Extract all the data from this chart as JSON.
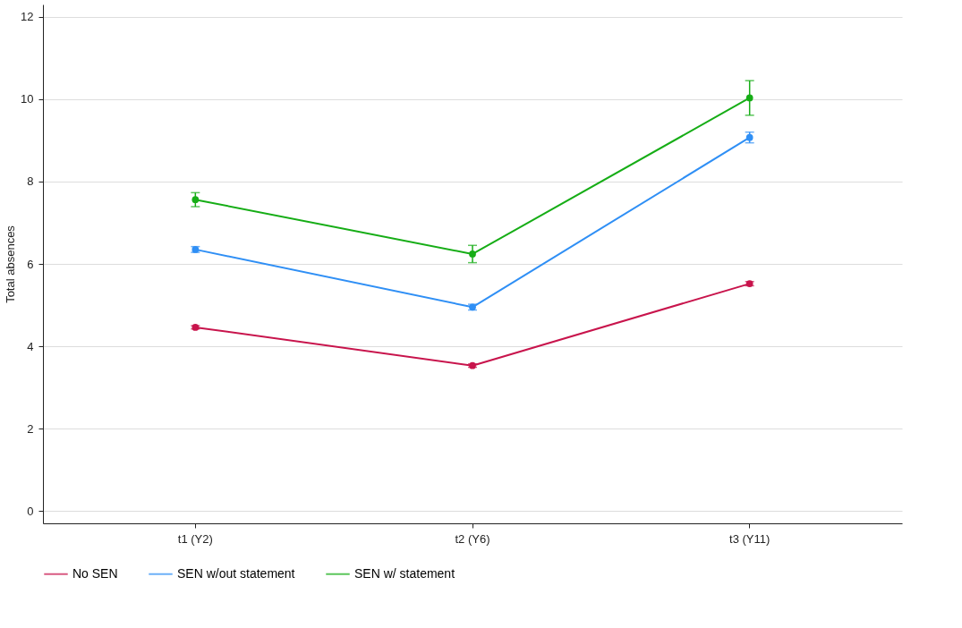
{
  "chart_data": {
    "type": "line",
    "ylabel": "Total absences",
    "categories": [
      "t1 (Y2)",
      "t2 (Y6)",
      "t3 (Y11)"
    ],
    "ylim": [
      -0.3,
      12.3
    ],
    "yticks": [
      0,
      2,
      4,
      6,
      8,
      10,
      12
    ],
    "grid": "y",
    "legend": "bottom",
    "marker": "circle",
    "series": [
      {
        "name": "No SEN",
        "color": "#c8144c",
        "values": [
          4.46,
          3.53,
          5.52
        ],
        "errors": [
          0.04,
          0.04,
          0.05
        ]
      },
      {
        "name": "SEN w/out statement",
        "color": "#2f8ff5",
        "values": [
          6.35,
          4.95,
          9.07
        ],
        "errors": [
          0.07,
          0.07,
          0.13
        ]
      },
      {
        "name": "SEN w/ statement",
        "color": "#16ad16",
        "values": [
          7.56,
          6.24,
          10.03
        ],
        "errors": [
          0.17,
          0.21,
          0.42
        ]
      }
    ]
  }
}
